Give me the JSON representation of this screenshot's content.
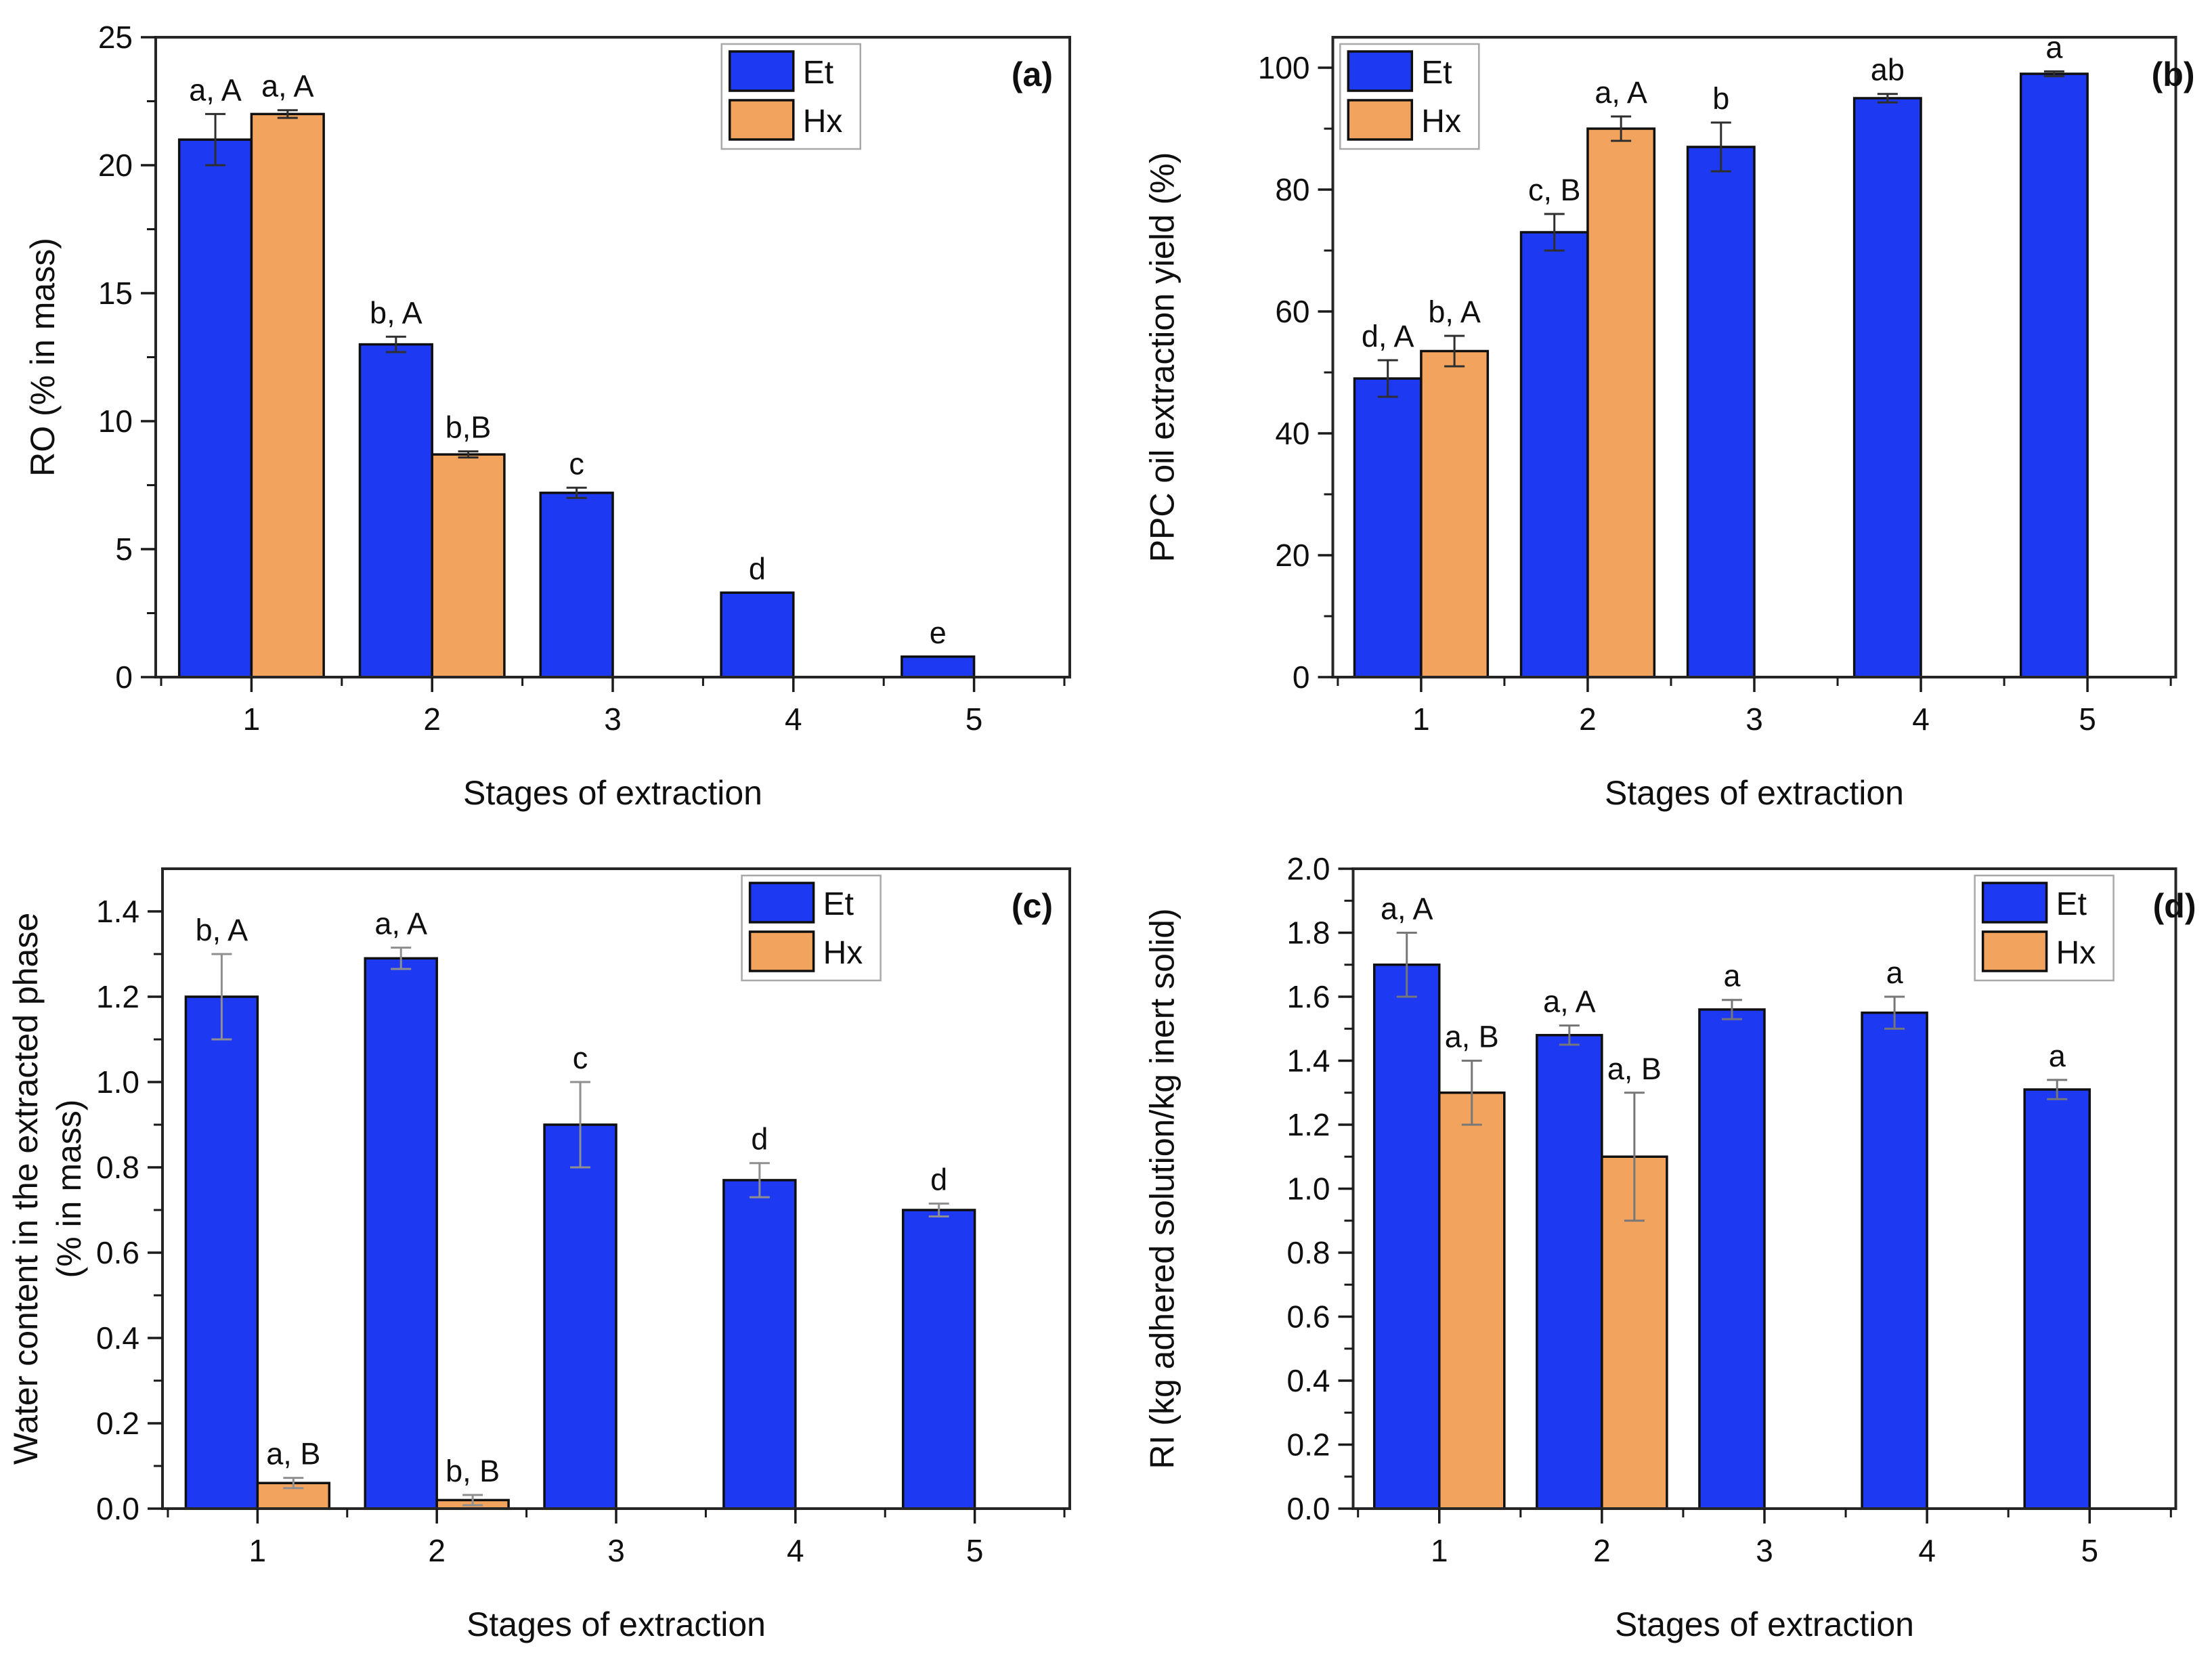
{
  "figure": {
    "legend": [
      {
        "key": "et",
        "label": "Et"
      },
      {
        "key": "hx",
        "label": "Hx"
      }
    ],
    "colors": {
      "et": "#1d3af2",
      "hx": "#f2a45f",
      "bar_stroke": "#0f0f0f",
      "frame": "#262626",
      "tick": "#1a1a1a",
      "text": "#0f0f0f",
      "legend_border": "#a8a8a8"
    }
  },
  "chart_data": [
    {
      "type": "bar",
      "panel_tag": "(a)",
      "ylabel_lines": [
        "RO (% in mass)"
      ],
      "xlabel": "Stages of extraction",
      "ylim": [
        0,
        25
      ],
      "ytick_major": 5,
      "ytick_minor": 2.5,
      "ytick_decimals": 0,
      "xlim": [
        0.47,
        5.53
      ],
      "categories": [
        "1",
        "2",
        "3",
        "4",
        "5"
      ],
      "bar_width": 0.4,
      "grid": "off",
      "legend_pos": "top-center-right",
      "legend_fx": 0.695,
      "left_margin": 230,
      "ylabel_x": 80,
      "tag_dx": -25,
      "error_color": "#2e2e2e",
      "series": [
        {
          "name": "Et",
          "values": [
            21.0,
            13.0,
            7.2,
            3.3,
            0.8
          ],
          "errors": [
            1.0,
            0.3,
            0.2,
            null,
            null
          ],
          "labels": [
            "a, A",
            "b, A",
            "c",
            "d",
            "e"
          ]
        },
        {
          "name": "Hx",
          "values": [
            22.0,
            8.7,
            null,
            null,
            null
          ],
          "errors": [
            0.15,
            0.12,
            null,
            null,
            null
          ],
          "labels": [
            "a, A",
            "b,B",
            null,
            null,
            null
          ]
        }
      ]
    },
    {
      "type": "bar",
      "panel_tag": "(b)",
      "ylabel_lines": [
        "PPC oil extraction yield (%)"
      ],
      "xlabel": "Stages of extraction",
      "ylim": [
        0,
        105
      ],
      "ytick_major": 20,
      "ytick_minor": 10,
      "ytick_decimals": 0,
      "xlim": [
        0.47,
        5.53
      ],
      "categories": [
        "1",
        "2",
        "3",
        "4",
        "5"
      ],
      "bar_width": 0.4,
      "grid": "off",
      "legend_pos": "top-left",
      "legend_fx": 0.091,
      "left_margin": 335,
      "ylabel_x": 100,
      "tag_dx": 28,
      "error_color": "#2e2e2e",
      "series": [
        {
          "name": "Et",
          "values": [
            49.0,
            73.0,
            87.0,
            95.0,
            99.0
          ],
          "errors": [
            3.0,
            3.0,
            4.0,
            0.7,
            0.4
          ],
          "labels": [
            "d, A",
            "c, B",
            "b",
            "ab",
            "a"
          ]
        },
        {
          "name": "Hx",
          "values": [
            53.5,
            90.0,
            null,
            null,
            null
          ],
          "errors": [
            2.5,
            2.0,
            null,
            null,
            null
          ],
          "labels": [
            "b, A",
            "a, A",
            null,
            null,
            null
          ]
        }
      ]
    },
    {
      "type": "bar",
      "panel_tag": "(c)",
      "ylabel_lines": [
        "Water content in the extracted phase",
        "(% in mass)"
      ],
      "xlabel": "Stages of extraction",
      "ylim": [
        0,
        1.5
      ],
      "ytick_major": 0.2,
      "ytick_minor": 0.1,
      "ytick_decimals": 1,
      "xlim": [
        0.47,
        5.53
      ],
      "categories": [
        "1",
        "2",
        "3",
        "4",
        "5"
      ],
      "bar_width": 0.4,
      "grid": "off",
      "legend_pos": "top-center-right",
      "legend_fx": 0.715,
      "left_margin": 240,
      "ylabel_x": 55,
      "tag_dx": -25,
      "error_color": "#8f8f8f",
      "series": [
        {
          "name": "Et",
          "values": [
            1.2,
            1.29,
            0.9,
            0.77,
            0.7
          ],
          "errors": [
            0.1,
            0.025,
            0.1,
            0.04,
            0.015
          ],
          "labels": [
            "b, A",
            "a, A",
            "c",
            "d",
            "d"
          ]
        },
        {
          "name": "Hx",
          "values": [
            0.06,
            0.02,
            null,
            null,
            null
          ],
          "errors": [
            0.012,
            0.012,
            null,
            null,
            null
          ],
          "labels": [
            "a, B",
            "b, B",
            null,
            null,
            null
          ]
        }
      ]
    },
    {
      "type": "bar",
      "panel_tag": "(d)",
      "ylabel_lines": [
        "RI (kg adhered solution/kg inert solid)"
      ],
      "xlabel": "Stages of extraction",
      "ylim": [
        0,
        2.0
      ],
      "ytick_major": 0.2,
      "ytick_minor": 0.1,
      "ytick_decimals": 1,
      "xlim": [
        0.47,
        5.53
      ],
      "categories": [
        "1",
        "2",
        "3",
        "4",
        "5"
      ],
      "bar_width": 0.4,
      "grid": "off",
      "legend_pos": "top-right",
      "legend_fx": 0.84,
      "left_margin": 365,
      "ylabel_x": 100,
      "tag_dx": 30,
      "error_color": "#777777",
      "series": [
        {
          "name": "Et",
          "values": [
            1.7,
            1.48,
            1.56,
            1.55,
            1.31
          ],
          "errors": [
            0.1,
            0.03,
            0.03,
            0.05,
            0.03
          ],
          "labels": [
            "a, A",
            "a, A",
            "a",
            "a",
            "a"
          ]
        },
        {
          "name": "Hx",
          "values": [
            1.3,
            1.1,
            null,
            null,
            null
          ],
          "errors": [
            0.1,
            0.2,
            null,
            null,
            null
          ],
          "labels": [
            "a, B",
            "a, B",
            null,
            null,
            null
          ]
        }
      ]
    }
  ]
}
